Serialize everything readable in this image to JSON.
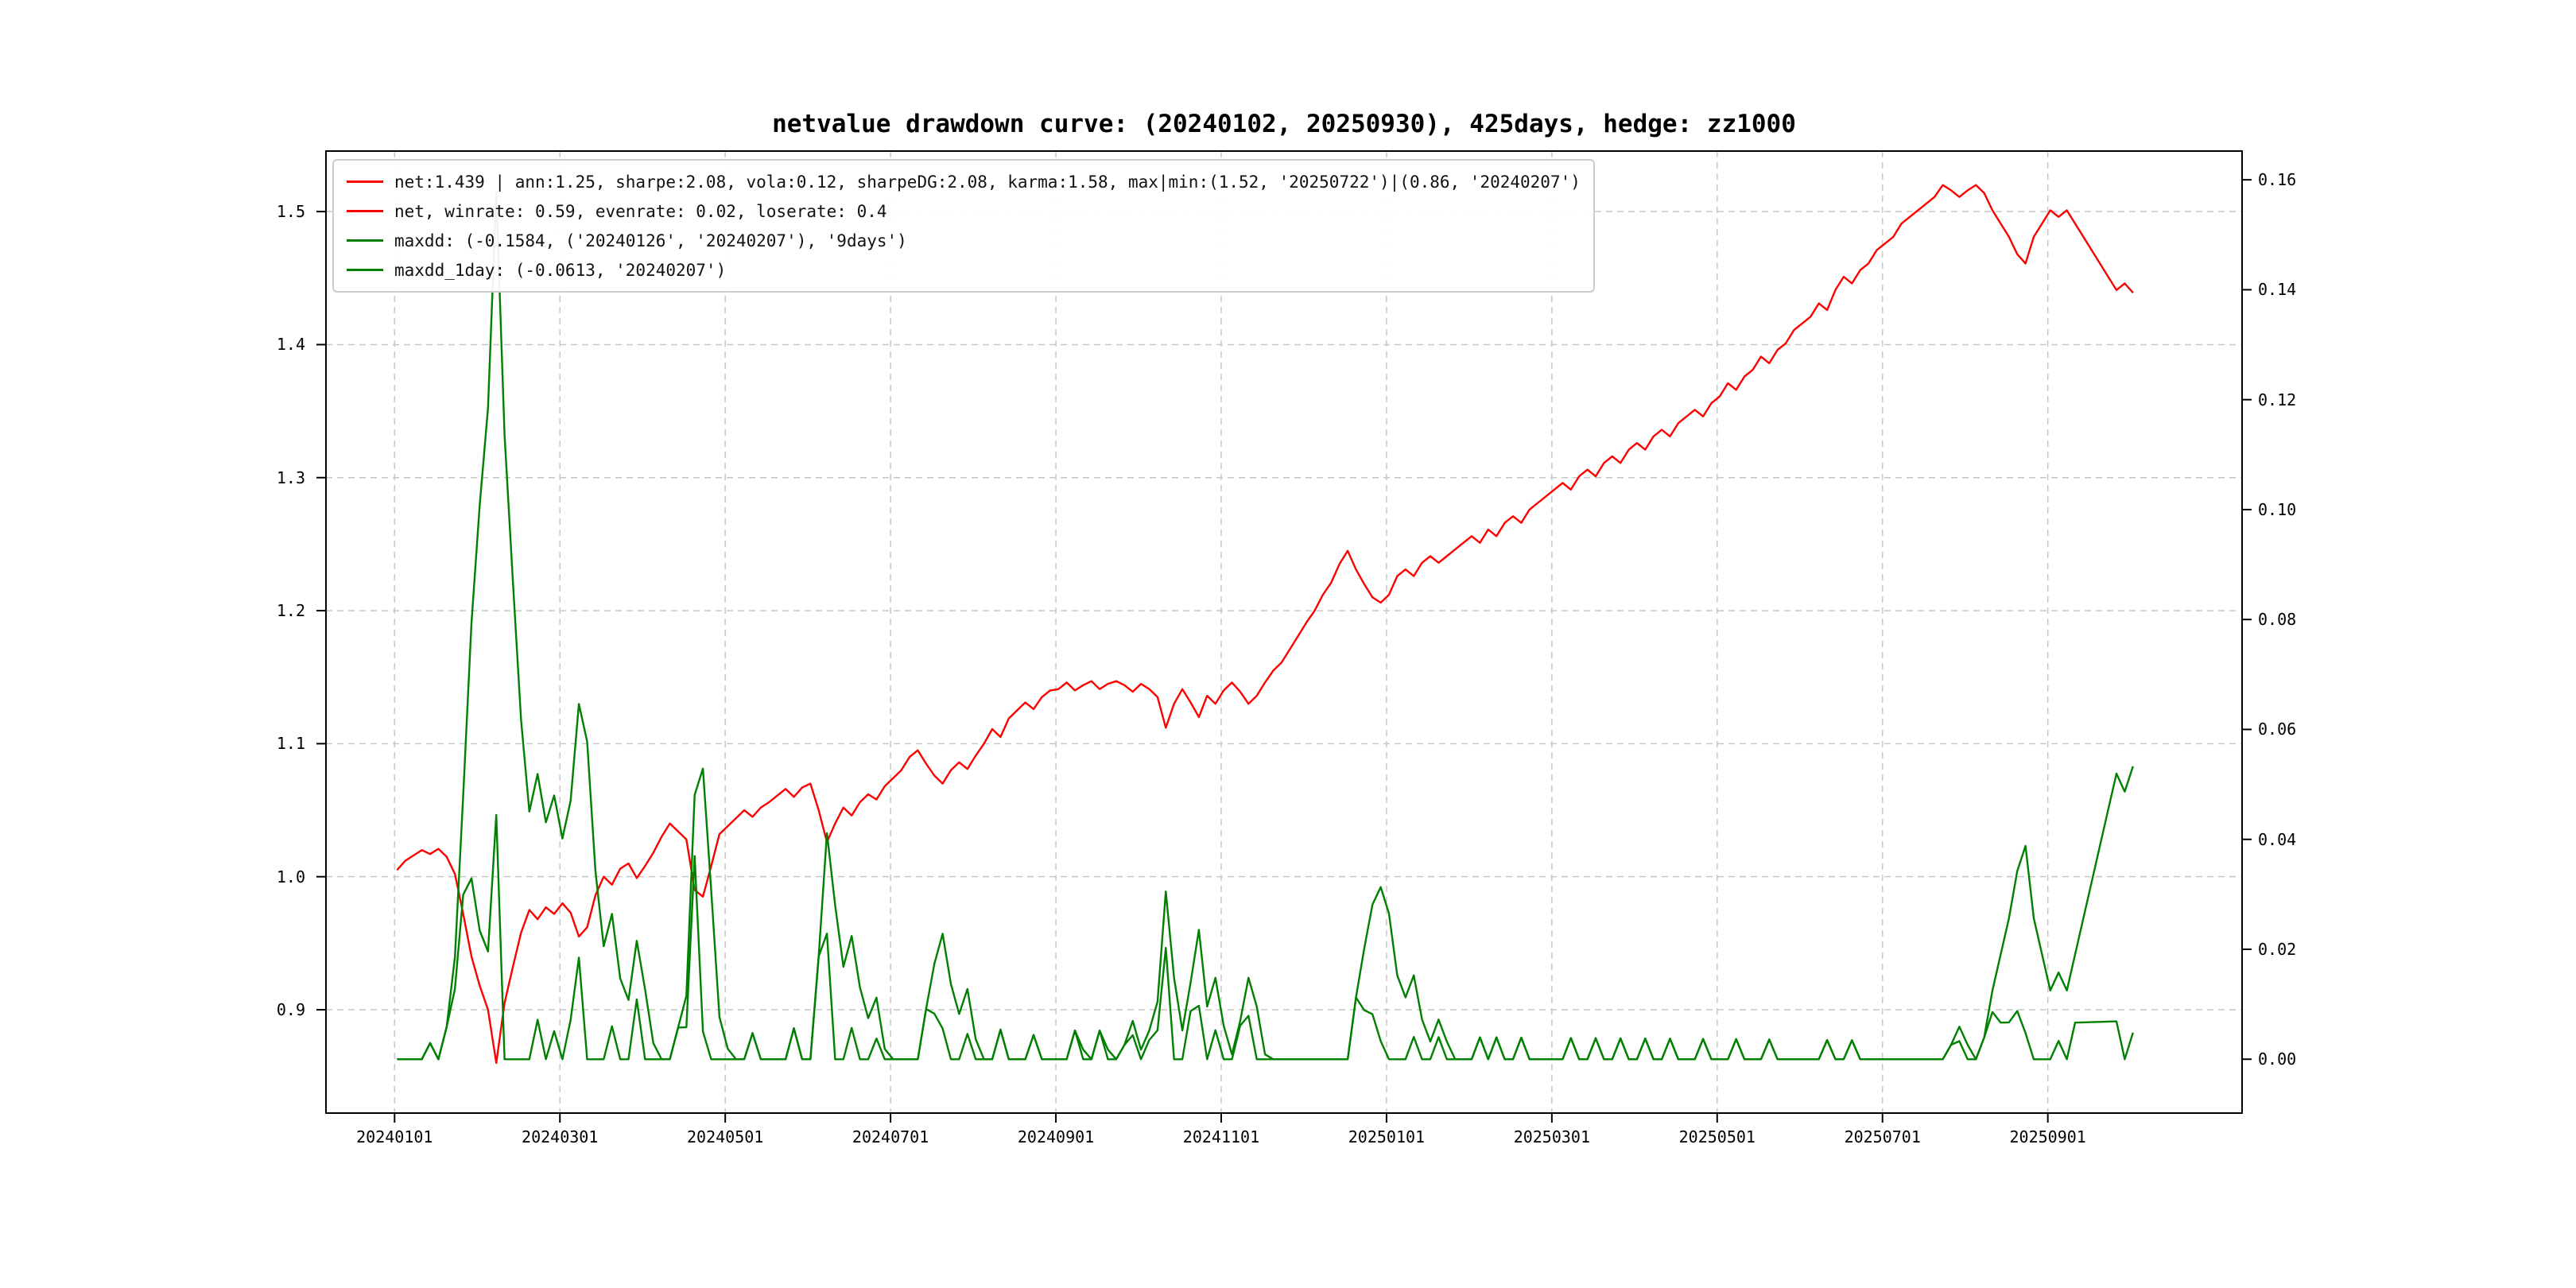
{
  "title": "netvalue drawdown curve: (20240102, 20250930), 425days, hedge: zz1000",
  "colors": {
    "net": "#ff0000",
    "drawdown": "#008000",
    "grid": "#c7c7c7",
    "axis": "#000000",
    "background": "#ffffff",
    "legend_border": "#cccccc"
  },
  "chart_data": {
    "type": "line",
    "title": "netvalue drawdown curve: (20240102, 20250930), 425days, hedge: zz1000",
    "x_axis": {
      "tick_labels": [
        "20240101",
        "20240301",
        "20240501",
        "20240701",
        "20240901",
        "20241101",
        "20250101",
        "20250301",
        "20250501",
        "20250701",
        "20250901"
      ],
      "tick_months": [
        0,
        2,
        4,
        6,
        8,
        10,
        12,
        14,
        16,
        18,
        20
      ],
      "range_months": [
        -0.83,
        22.35
      ],
      "grid": true
    },
    "y_left": {
      "ticks": [
        "0.9",
        "1.0",
        "1.1",
        "1.2",
        "1.3",
        "1.4",
        "1.5"
      ],
      "tick_values": [
        0.9,
        1.0,
        1.1,
        1.2,
        1.3,
        1.4,
        1.5
      ],
      "range": [
        0.8223,
        1.5455
      ],
      "grid": true
    },
    "y_right": {
      "ticks": [
        "0.00",
        "0.02",
        "0.04",
        "0.06",
        "0.08",
        "0.10",
        "0.12",
        "0.14",
        "0.16"
      ],
      "tick_values": [
        0.0,
        0.02,
        0.04,
        0.06,
        0.08,
        0.1,
        0.12,
        0.14,
        0.16
      ],
      "range": [
        -0.0098,
        0.16523
      ],
      "grid": false
    },
    "legend": [
      {
        "key": "net-stats",
        "color": "#ff0000",
        "label": "net:1.439 | ann:1.25, sharpe:2.08, vola:0.12, sharpeDG:2.08, karma:1.58, max|min:(1.52, '20250722')|(0.86, '20240207')"
      },
      {
        "key": "net-winrate",
        "color": "#ff0000",
        "label": "net, winrate: 0.59, evenrate: 0.02, loserate: 0.4"
      },
      {
        "key": "maxdd",
        "color": "#008000",
        "label": "maxdd: (-0.1584, ('20240126', '20240207'), '9days')"
      },
      {
        "key": "maxdd-1day",
        "color": "#008000",
        "label": "maxdd_1day: (-0.0613, '20240207')"
      }
    ],
    "series_net": {
      "name": "net",
      "axis": "left",
      "color": "#ff0000",
      "x_unit": "months_since_20240101",
      "x_start": 0.03,
      "x_step": 0.1,
      "values": [
        1.005,
        1.012,
        1.016,
        1.02,
        1.017,
        1.021,
        1.015,
        1.002,
        0.972,
        0.94,
        0.918,
        0.9,
        0.86,
        0.905,
        0.932,
        0.958,
        0.975,
        0.968,
        0.977,
        0.972,
        0.98,
        0.973,
        0.955,
        0.962,
        0.986,
        1.0,
        0.994,
        1.006,
        1.01,
        0.999,
        1.008,
        1.018,
        1.03,
        1.04,
        1.034,
        1.028,
        0.99,
        0.985,
        1.008,
        1.032,
        1.038,
        1.044,
        1.05,
        1.045,
        1.052,
        1.056,
        1.061,
        1.066,
        1.06,
        1.067,
        1.07,
        1.05,
        1.026,
        1.04,
        1.052,
        1.046,
        1.056,
        1.062,
        1.058,
        1.068,
        1.074,
        1.08,
        1.09,
        1.095,
        1.085,
        1.076,
        1.07,
        1.08,
        1.086,
        1.081,
        1.091,
        1.1,
        1.111,
        1.105,
        1.119,
        1.125,
        1.131,
        1.126,
        1.135,
        1.14,
        1.141,
        1.146,
        1.14,
        1.144,
        1.147,
        1.141,
        1.145,
        1.147,
        1.144,
        1.139,
        1.145,
        1.141,
        1.135,
        1.112,
        1.13,
        1.141,
        1.131,
        1.12,
        1.136,
        1.13,
        1.14,
        1.146,
        1.139,
        1.13,
        1.136,
        1.146,
        1.155,
        1.161,
        1.171,
        1.181,
        1.191,
        1.2,
        1.212,
        1.221,
        1.235,
        1.245,
        1.231,
        1.22,
        1.21,
        1.206,
        1.212,
        1.226,
        1.231,
        1.226,
        1.236,
        1.241,
        1.236,
        1.241,
        1.246,
        1.251,
        1.256,
        1.251,
        1.261,
        1.256,
        1.266,
        1.271,
        1.266,
        1.276,
        1.281,
        1.286,
        1.291,
        1.296,
        1.291,
        1.301,
        1.306,
        1.301,
        1.311,
        1.316,
        1.311,
        1.321,
        1.326,
        1.321,
        1.331,
        1.336,
        1.331,
        1.341,
        1.346,
        1.351,
        1.346,
        1.356,
        1.361,
        1.371,
        1.366,
        1.376,
        1.381,
        1.391,
        1.386,
        1.396,
        1.401,
        1.411,
        1.416,
        1.421,
        1.431,
        1.426,
        1.441,
        1.451,
        1.446,
        1.456,
        1.461,
        1.471,
        1.476,
        1.481,
        1.491,
        1.496,
        1.501,
        1.506,
        1.511,
        1.52,
        1.516,
        1.511,
        1.516,
        1.52,
        1.514,
        1.501,
        1.491,
        1.481,
        1.468,
        1.461,
        1.481,
        1.491,
        1.501,
        1.496,
        1.501,
        1.491,
        1.481,
        1.471,
        1.461,
        1.451,
        1.441,
        1.446,
        1.439
      ]
    },
    "series_drawdown": {
      "name": "maxdd",
      "axis": "right",
      "color": "#008000",
      "derived": "running_drawdown_of_net",
      "max_drawdown": -0.1584,
      "max_drawdown_window": [
        "20240126",
        "20240207"
      ],
      "max_drawdown_days": "9days"
    },
    "series_drawdown_1day": {
      "name": "maxdd_1day",
      "axis": "right",
      "color": "#008000",
      "derived": "daily_loss_of_net",
      "max_1day_drawdown": -0.0613,
      "max_1day_drawdown_date": "20240207"
    }
  }
}
